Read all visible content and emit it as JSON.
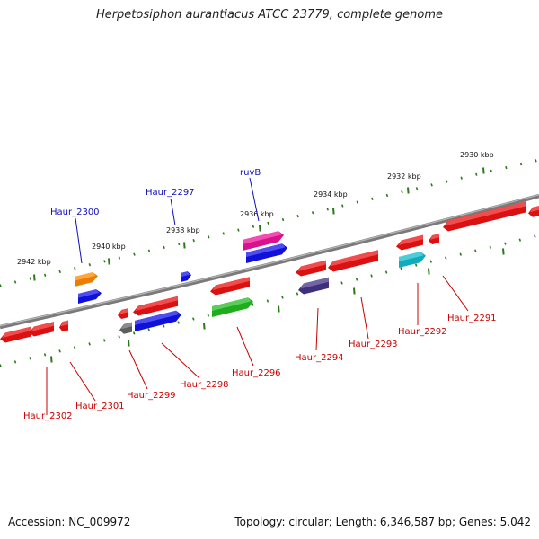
{
  "title": "Herpetosiphon aurantiacus ATCC 23779, complete genome",
  "footer": {
    "accession": "Accession: NC_009972",
    "topology": "Topology: circular; Length: 6,346,587 bp; Genes: 5,042"
  },
  "colors": {
    "backbone": "#7a7a7a",
    "ruler": "#2a7a1a",
    "label_top": "#1010c0",
    "label_bottom": "#cc0000",
    "leader_top": "#1010c0",
    "leader_bottom": "#cc0000"
  },
  "ruler_labels": [
    "2942 kbp",
    "2940 kbp",
    "2938 kbp",
    "2936 kbp",
    "2934 kbp",
    "2932 kbp",
    "2930 kbp"
  ],
  "genes": [
    {
      "name": "Haur_2302",
      "color": "#ee1111",
      "strand": "-"
    },
    {
      "name": "Haur_2301",
      "color": "#ee1111",
      "strand": "-"
    },
    {
      "name": "Haur_2300",
      "color": "#ff8800",
      "strand": "+"
    },
    {
      "name": "Haur_2299",
      "color": "#666666",
      "strand": "-"
    },
    {
      "name": "Haur_2298",
      "color": "#1111ee",
      "strand": "+"
    },
    {
      "name": "Haur_2297",
      "color": "#1111ee",
      "strand": "+"
    },
    {
      "name": "Haur_2296",
      "color": "#22bb22",
      "strand": "+"
    },
    {
      "name": "ruvB",
      "color": "#ee1199",
      "strand": "+"
    },
    {
      "name": "Haur_2294",
      "color": "#443388",
      "strand": "-"
    },
    {
      "name": "Haur_2293",
      "color": "#ee1111",
      "strand": "-"
    },
    {
      "name": "Haur_2292",
      "color": "#11bbcc",
      "strand": "+"
    },
    {
      "name": "Haur_2291",
      "color": "#ee1111",
      "strand": "-"
    }
  ]
}
